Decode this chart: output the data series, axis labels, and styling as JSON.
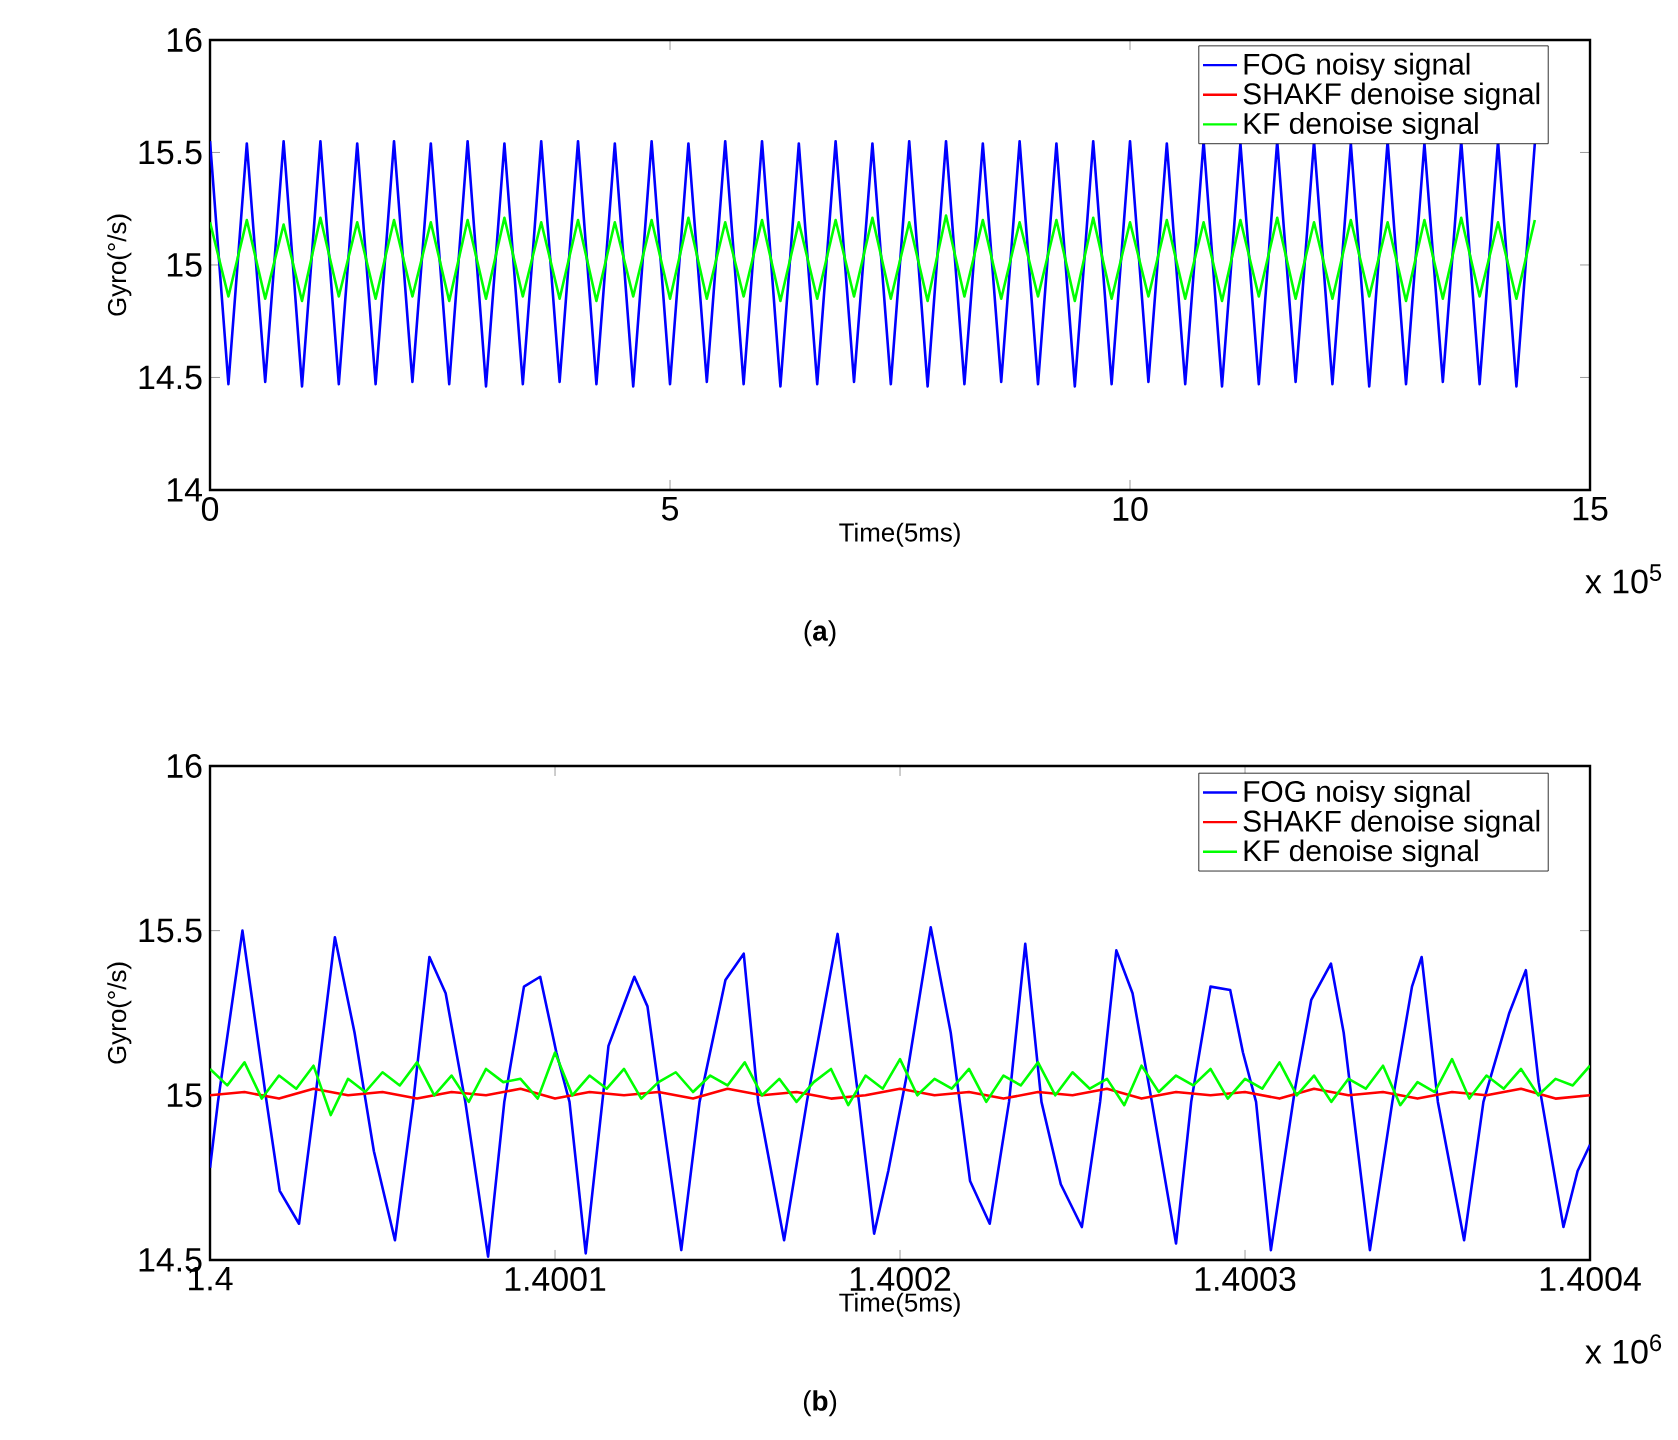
{
  "chart_data": [
    {
      "type": "line",
      "xlabel": "Time(5ms)",
      "ylabel": "Gyro(°/s)",
      "xlim": [
        0,
        15
      ],
      "ylim": [
        14,
        16
      ],
      "xticks": [
        0,
        5,
        10,
        15
      ],
      "yticks": [
        14,
        14.5,
        15,
        15.5,
        16
      ],
      "legend": "top right",
      "line_style": "solid",
      "annotations": [
        "x 10$^{5}$",
        "(**a**)"
      ],
      "x": [
        0,
        0.2,
        0.4,
        0.6,
        0.8,
        1.0,
        1.2,
        1.4,
        1.6,
        1.8,
        2.0,
        2.2,
        2.4,
        2.6,
        2.8,
        3.0,
        3.2,
        3.4,
        3.6,
        3.8,
        4.0,
        4.2,
        4.4,
        4.6,
        4.8,
        5.0,
        5.2,
        5.4,
        5.6,
        5.8,
        6.0,
        6.2,
        6.4,
        6.6,
        6.8,
        7.0,
        7.2,
        7.4,
        7.6,
        7.8,
        8.0,
        8.2,
        8.4,
        8.6,
        8.8,
        9.0,
        9.2,
        9.4,
        9.6,
        9.8,
        10.0,
        10.2,
        10.4,
        10.6,
        10.8,
        11.0,
        11.2,
        11.4,
        11.6,
        11.8,
        12.0,
        12.2,
        12.4,
        12.6,
        12.8,
        13.0,
        13.2,
        13.4,
        13.6,
        13.8,
        14.0,
        14.2,
        14.4
      ],
      "series": [
        {
          "name": "FOG noisy signal",
          "color": "#0000ff",
          "values": [
            15.55,
            14.47,
            15.54,
            14.48,
            15.55,
            14.46,
            15.55,
            14.47,
            15.54,
            14.47,
            15.55,
            14.48,
            15.54,
            14.47,
            15.55,
            14.46,
            15.54,
            14.47,
            15.55,
            14.48,
            15.55,
            14.47,
            15.54,
            14.46,
            15.55,
            14.47,
            15.54,
            14.48,
            15.55,
            14.47,
            15.55,
            14.46,
            15.54,
            14.47,
            15.55,
            14.48,
            15.54,
            14.47,
            15.55,
            14.46,
            15.55,
            14.47,
            15.54,
            14.48,
            15.55,
            14.47,
            15.54,
            14.46,
            15.55,
            14.47,
            15.55,
            14.48,
            15.54,
            14.47,
            15.55,
            14.46,
            15.54,
            14.47,
            15.55,
            14.48,
            15.55,
            14.47,
            15.54,
            14.46,
            15.55,
            14.47,
            15.54,
            14.48,
            15.55,
            14.47,
            15.55,
            14.46,
            15.54
          ]
        },
        {
          "name": "SHAKF denoise signal",
          "color": "#ff0000",
          "values": [
            null,
            null,
            null,
            null,
            null,
            null,
            null,
            null,
            null,
            null,
            null,
            null,
            null,
            null,
            null,
            null,
            null,
            null,
            null,
            null,
            null,
            null,
            null,
            null,
            null,
            null,
            null,
            null,
            null,
            null,
            null,
            null,
            null,
            null,
            null,
            null,
            null,
            null,
            null,
            null,
            null,
            null,
            null,
            null,
            null,
            null,
            null,
            null,
            null,
            null,
            null,
            null,
            null,
            null,
            null,
            null,
            null,
            null,
            null,
            null,
            null,
            null,
            null,
            null,
            null,
            null,
            null,
            null,
            null,
            null,
            null,
            null,
            null
          ]
        },
        {
          "name": "KF denoise signal",
          "color": "#00ff00",
          "values": [
            15.19,
            14.86,
            15.2,
            14.85,
            15.18,
            14.84,
            15.21,
            14.86,
            15.19,
            14.85,
            15.2,
            14.86,
            15.19,
            14.84,
            15.2,
            14.85,
            15.21,
            14.86,
            15.19,
            14.85,
            15.2,
            14.84,
            15.19,
            14.86,
            15.2,
            14.85,
            15.21,
            14.85,
            15.19,
            14.86,
            15.2,
            14.84,
            15.19,
            14.85,
            15.2,
            14.86,
            15.21,
            14.85,
            15.19,
            14.84,
            15.22,
            14.86,
            15.2,
            14.85,
            15.19,
            14.86,
            15.2,
            14.84,
            15.21,
            14.85,
            15.19,
            14.86,
            15.2,
            14.85,
            15.19,
            14.84,
            15.2,
            14.86,
            15.21,
            14.85,
            15.19,
            14.85,
            15.2,
            14.86,
            15.19,
            14.84,
            15.2,
            14.85,
            15.21,
            14.86,
            15.19,
            14.85,
            15.2
          ]
        }
      ]
    },
    {
      "type": "line",
      "xlabel": "Time(5ms)",
      "ylabel": "Gyro(°/s)",
      "xlim": [
        1.4,
        1.4004
      ],
      "ylim": [
        14.5,
        16
      ],
      "xticks": [
        1.4,
        1.4001,
        1.4002,
        1.4003,
        1.4004
      ],
      "yticks": [
        14.5,
        15,
        15.5,
        16
      ],
      "legend": "top right",
      "line_style": "solid",
      "annotations": [
        "x 10$^{6}$",
        "(**b**)"
      ],
      "series": [
        {
          "name": "FOG noisy signal",
          "color": "#0000ff",
          "x": [
            1.4,
            1.4000023,
            1.4000094,
            1.4000164,
            1.4000202,
            1.4000258,
            1.4000306,
            1.4000362,
            1.4000419,
            1.4000475,
            1.4000536,
            1.4000589,
            1.4000636,
            1.4000683,
            1.400074,
            1.4000806,
            1.4000853,
            1.400091,
            1.4000957,
            1.4001004,
            1.4001042,
            1.4001089,
            1.4001155,
            1.400123,
            1.4001268,
            1.4001306,
            1.4001366,
            1.4001419,
            1.4001494,
            1.4001547,
            1.4001589,
            1.4001664,
            1.400173,
            1.4001819,
            1.4001881,
            1.4001925,
            1.4001966,
            1.4002023,
            1.4002089,
            1.4002147,
            1.4002203,
            1.400226,
            1.4002316,
            1.4002363,
            1.400241,
            1.4002466,
            1.4002527,
            1.400258,
            1.4002627,
            1.4002674,
            1.400273,
            1.40028,
            1.4002844,
            1.40029,
            1.4002957,
            1.4002994,
            1.4003032,
            1.4003075,
            1.4003145,
            1.4003192,
            1.4003249,
            1.4003286,
            1.4003362,
            1.4003427,
            1.4003484,
            1.4003512,
            1.4003559,
            1.4003635,
            1.4003691,
            1.4003766,
            1.4003814,
            1.4003851,
            1.4003923,
            1.4003964,
            1.4004
          ],
          "values": [
            14.78,
            14.98,
            15.5,
            14.98,
            14.71,
            14.61,
            15.0,
            15.48,
            15.19,
            14.83,
            14.56,
            14.98,
            15.42,
            15.31,
            14.98,
            14.51,
            14.98,
            15.33,
            15.36,
            15.13,
            14.98,
            14.52,
            15.15,
            15.36,
            15.27,
            14.98,
            14.53,
            14.98,
            15.35,
            15.43,
            14.98,
            14.56,
            14.98,
            15.49,
            14.98,
            14.58,
            14.77,
            15.08,
            15.51,
            15.19,
            14.74,
            14.61,
            14.98,
            15.46,
            14.98,
            14.73,
            14.6,
            14.98,
            15.44,
            15.31,
            14.98,
            14.55,
            14.98,
            15.33,
            15.32,
            15.13,
            14.98,
            14.53,
            15.02,
            15.29,
            15.4,
            15.19,
            14.53,
            14.98,
            15.33,
            15.42,
            14.98,
            14.56,
            14.98,
            15.25,
            15.38,
            15.04,
            14.6,
            14.77,
            14.85
          ]
        },
        {
          "name": "SHAKF denoise signal",
          "color": "#ff0000",
          "x": [
            1.4,
            1.40001,
            1.40002,
            1.40003,
            1.40004,
            1.40005,
            1.40006,
            1.40007,
            1.40008,
            1.40009,
            1.4001,
            1.40011,
            1.40012,
            1.40013,
            1.40014,
            1.40015,
            1.40016,
            1.40017,
            1.40018,
            1.40019,
            1.4002,
            1.40021,
            1.40022,
            1.40023,
            1.40024,
            1.40025,
            1.40026,
            1.40027,
            1.40028,
            1.40029,
            1.4003,
            1.40031,
            1.40032,
            1.40033,
            1.40034,
            1.40035,
            1.40036,
            1.40037,
            1.40038,
            1.40039,
            1.4004
          ],
          "values": [
            15.0,
            15.01,
            14.99,
            15.02,
            15.0,
            15.01,
            14.99,
            15.01,
            15.0,
            15.02,
            14.99,
            15.01,
            15.0,
            15.01,
            14.99,
            15.02,
            15.0,
            15.01,
            14.99,
            15.0,
            15.02,
            15.0,
            15.01,
            14.99,
            15.01,
            15.0,
            15.02,
            14.99,
            15.01,
            15.0,
            15.01,
            14.99,
            15.02,
            15.0,
            15.01,
            14.99,
            15.01,
            15.0,
            15.02,
            14.99,
            15.0
          ]
        },
        {
          "name": "KF denoise signal",
          "color": "#00ff00",
          "x": [
            1.4,
            1.400005,
            1.40001,
            1.400015,
            1.40002,
            1.400025,
            1.40003,
            1.400035,
            1.40004,
            1.400045,
            1.40005,
            1.400055,
            1.40006,
            1.400065,
            1.40007,
            1.400075,
            1.40008,
            1.400085,
            1.40009,
            1.400095,
            1.4001,
            1.400105,
            1.40011,
            1.400115,
            1.40012,
            1.400125,
            1.40013,
            1.400135,
            1.40014,
            1.400145,
            1.40015,
            1.400155,
            1.40016,
            1.400165,
            1.40017,
            1.400175,
            1.40018,
            1.400185,
            1.40019,
            1.400195,
            1.4002,
            1.400205,
            1.40021,
            1.400215,
            1.40022,
            1.400225,
            1.40023,
            1.400235,
            1.40024,
            1.400245,
            1.40025,
            1.400255,
            1.40026,
            1.400265,
            1.40027,
            1.400275,
            1.40028,
            1.400285,
            1.40029,
            1.400295,
            1.4003,
            1.400305,
            1.40031,
            1.400315,
            1.40032,
            1.400325,
            1.40033,
            1.400335,
            1.40034,
            1.400345,
            1.40035,
            1.400355,
            1.40036,
            1.400365,
            1.40037,
            1.400375,
            1.40038,
            1.400385,
            1.40039,
            1.400395,
            1.4004
          ],
          "values": [
            15.08,
            15.03,
            15.1,
            14.99,
            15.06,
            15.02,
            15.09,
            14.94,
            15.05,
            15.01,
            15.07,
            15.03,
            15.1,
            15.0,
            15.06,
            14.98,
            15.08,
            15.04,
            15.05,
            14.99,
            15.13,
            15.0,
            15.06,
            15.02,
            15.08,
            14.99,
            15.04,
            15.07,
            15.01,
            15.06,
            15.03,
            15.1,
            15.0,
            15.05,
            14.98,
            15.04,
            15.08,
            14.97,
            15.06,
            15.02,
            15.11,
            15.0,
            15.05,
            15.02,
            15.08,
            14.98,
            15.06,
            15.03,
            15.1,
            15.0,
            15.07,
            15.02,
            15.05,
            14.97,
            15.09,
            15.01,
            15.06,
            15.03,
            15.08,
            14.99,
            15.05,
            15.02,
            15.1,
            15.0,
            15.06,
            14.98,
            15.05,
            15.02,
            15.09,
            14.97,
            15.04,
            15.01,
            15.11,
            14.99,
            15.06,
            15.02,
            15.08,
            15.0,
            15.05,
            15.03,
            15.09
          ]
        }
      ]
    }
  ]
}
